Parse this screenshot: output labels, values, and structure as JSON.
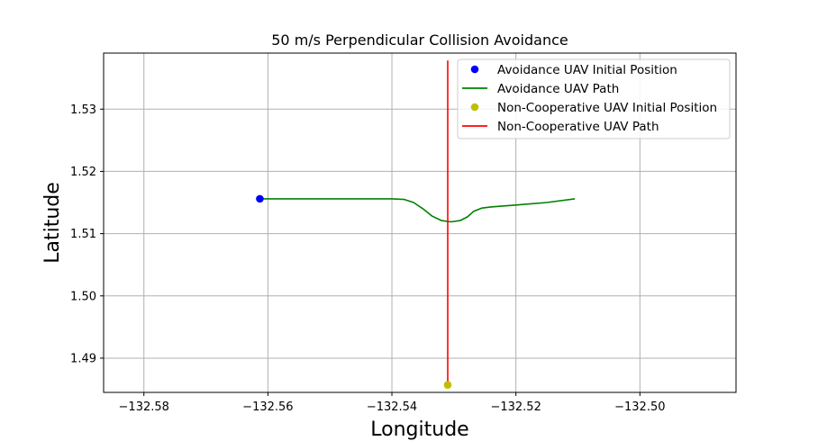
{
  "chart_data": {
    "type": "line",
    "title": "50 m/s Perpendicular Collision Avoidance",
    "xlabel": "Longitude",
    "ylabel": "Latitude",
    "xlim": [
      -132.5865,
      -132.4845
    ],
    "ylim": [
      1.4845,
      1.539
    ],
    "xticks": [
      -132.58,
      -132.56,
      -132.54,
      -132.52,
      -132.5
    ],
    "xtick_labels": [
      "−132.58",
      "−132.56",
      "−132.54",
      "−132.52",
      "−132.50"
    ],
    "yticks": [
      1.49,
      1.5,
      1.51,
      1.52,
      1.53
    ],
    "ytick_labels": [
      "1.49",
      "1.50",
      "1.51",
      "1.52",
      "1.53"
    ],
    "grid": true,
    "legend_position": "top-right",
    "series": [
      {
        "name": "Avoidance UAV Initial Position",
        "kind": "point",
        "color": "#0000ff",
        "points": [
          [
            -132.5613,
            1.5156
          ]
        ]
      },
      {
        "name": "Avoidance UAV Path",
        "kind": "line",
        "color": "#008000",
        "points": [
          [
            -132.5613,
            1.5156
          ],
          [
            -132.55,
            1.5156
          ],
          [
            -132.54,
            1.5156
          ],
          [
            -132.538,
            1.5155
          ],
          [
            -132.5365,
            1.515
          ],
          [
            -132.535,
            1.514
          ],
          [
            -132.5335,
            1.5128
          ],
          [
            -132.532,
            1.5121
          ],
          [
            -132.5305,
            1.5119
          ],
          [
            -132.529,
            1.5121
          ],
          [
            -132.5278,
            1.5127
          ],
          [
            -132.5268,
            1.5136
          ],
          [
            -132.5255,
            1.5141
          ],
          [
            -132.524,
            1.5143
          ],
          [
            -132.52,
            1.5146
          ],
          [
            -132.515,
            1.515
          ],
          [
            -132.5105,
            1.5156
          ]
        ]
      },
      {
        "name": "Non-Cooperative UAV Initial Position",
        "kind": "point",
        "color": "#bfbf00",
        "points": [
          [
            -132.531,
            1.4857
          ]
        ]
      },
      {
        "name": "Non-Cooperative UAV Path",
        "kind": "line",
        "color": "#ff0000",
        "points": [
          [
            -132.531,
            1.4857
          ],
          [
            -132.531,
            1.5378
          ]
        ]
      }
    ]
  }
}
